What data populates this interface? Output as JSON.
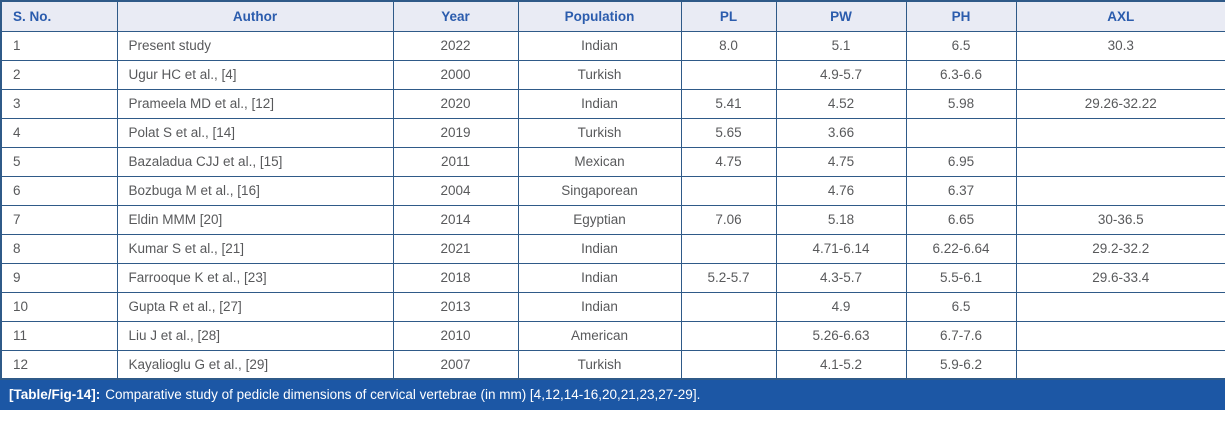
{
  "colors": {
    "border": "#2f5a88",
    "header_background": "#e9ebf4",
    "header_text": "#2b5cad",
    "body_text": "#58595b",
    "caption_background": "#1c57a5",
    "caption_text": "#ffffff"
  },
  "table": {
    "columns": [
      "S. No.",
      "Author",
      "Year",
      "Population",
      "PL",
      "PW",
      "PH",
      "AXL"
    ],
    "rows": [
      [
        "1",
        "Present study",
        "2022",
        "Indian",
        "8.0",
        "5.1",
        "6.5",
        "30.3"
      ],
      [
        "2",
        "Ugur HC et al., [4]",
        "2000",
        "Turkish",
        "",
        "4.9-5.7",
        "6.3-6.6",
        ""
      ],
      [
        "3",
        "Prameela MD et al., [12]",
        "2020",
        "Indian",
        "5.41",
        "4.52",
        "5.98",
        "29.26-32.22"
      ],
      [
        "4",
        "Polat S et al., [14]",
        "2019",
        "Turkish",
        "5.65",
        "3.66",
        "",
        ""
      ],
      [
        "5",
        "Bazaladua CJJ et al., [15]",
        "2011",
        "Mexican",
        "4.75",
        "4.75",
        "6.95",
        ""
      ],
      [
        "6",
        "Bozbuga M et al., [16]",
        "2004",
        "Singaporean",
        "",
        "4.76",
        "6.37",
        ""
      ],
      [
        "7",
        "Eldin MMM [20]",
        "2014",
        "Egyptian",
        "7.06",
        "5.18",
        "6.65",
        "30-36.5"
      ],
      [
        "8",
        "Kumar S et al., [21]",
        "2021",
        "Indian",
        "",
        "4.71-6.14",
        "6.22-6.64",
        "29.2-32.2"
      ],
      [
        "9",
        "Farrooque K et al., [23]",
        "2018",
        "Indian",
        "5.2-5.7",
        "4.3-5.7",
        "5.5-6.1",
        "29.6-33.4"
      ],
      [
        "10",
        "Gupta R et al., [27]",
        "2013",
        "Indian",
        "",
        "4.9",
        "6.5",
        ""
      ],
      [
        "11",
        "Liu J et al., [28]",
        "2010",
        "American",
        "",
        "5.26-6.63",
        "6.7-7.6",
        ""
      ],
      [
        "12",
        "Kayalioglu G et al., [29]",
        "2007",
        "Turkish",
        "",
        "4.1-5.2",
        "5.9-6.2",
        ""
      ]
    ]
  },
  "caption": {
    "label": "[Table/Fig-14]:",
    "text": "Comparative study of pedicle dimensions of cervical vertebrae (in mm) [4,12,14-16,20,21,23,27-29]."
  }
}
